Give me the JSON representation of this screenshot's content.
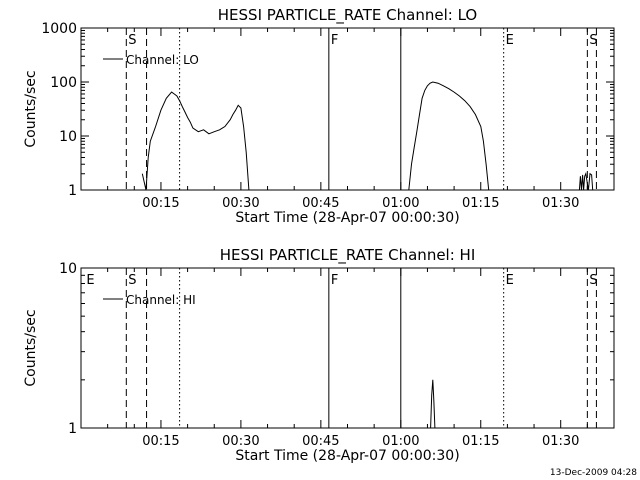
{
  "chart_data": [
    {
      "type": "line",
      "title": "HESSI PARTICLE_RATE Channel: LO",
      "xlabel": "Start Time (28-Apr-07 00:00:30)",
      "ylabel": "Counts/sec",
      "yscale": "log",
      "ylim": [
        1,
        1000
      ],
      "xlim": [
        0,
        100
      ],
      "x_unit": "minutes after 00:00:30",
      "x_ticks": [
        15,
        30,
        45,
        60,
        75,
        90
      ],
      "x_tick_labels": [
        "00:15",
        "00:30",
        "00:45",
        "01:00",
        "01:15",
        "01:30"
      ],
      "y_ticks": [
        1,
        10,
        100,
        1000
      ],
      "y_tick_labels": [
        "1",
        "10",
        "100",
        "1000"
      ],
      "legend": {
        "entries": [
          "Channel: LO"
        ],
        "placement": "top-left"
      },
      "markers": [
        {
          "x": 8.5,
          "style": "dashed",
          "label": "S"
        },
        {
          "x": 12.3,
          "style": "dashed",
          "label": ""
        },
        {
          "x": 18.5,
          "style": "dotted",
          "label": ""
        },
        {
          "x": 46.5,
          "style": "solid",
          "label": "F"
        },
        {
          "x": 60.0,
          "style": "solid",
          "label": ""
        },
        {
          "x": 79.3,
          "style": "dotted",
          "label": "E"
        },
        {
          "x": 95.0,
          "style": "dashed",
          "label": "S"
        },
        {
          "x": 96.7,
          "style": "dashed",
          "label": ""
        }
      ],
      "series": [
        {
          "name": "Channel: LO",
          "segments": [
            {
              "x": [
                11.5,
                12.2,
                12.4,
                12.6,
                13.0,
                14.0,
                15.0,
                16.0,
                17.0,
                17.5,
                18.0,
                18.5,
                19.0,
                19.5,
                20.0,
                20.5,
                21.0,
                22.0,
                23.0,
                24.0,
                25.0,
                26.0,
                27.0,
                28.0,
                28.5,
                29.0,
                29.5,
                30.0,
                30.5,
                31.0,
                31.5
              ],
              "y": [
                2,
                1,
                2,
                4,
                8,
                15,
                30,
                50,
                65,
                60,
                55,
                45,
                35,
                28,
                22,
                18,
                14,
                12,
                13,
                11,
                12,
                13,
                15,
                20,
                25,
                30,
                37,
                33,
                15,
                5,
                1
              ]
            },
            {
              "x": [
                61.5,
                62.0,
                62.5,
                63.0,
                63.5,
                64.0,
                64.5,
                65.0,
                65.5,
                66.0,
                67.0,
                68.0,
                69.0,
                70.0,
                71.0,
                72.0,
                73.0,
                74.0,
                75.0,
                75.5,
                76.0,
                76.5
              ],
              "y": [
                1,
                3,
                6,
                12,
                25,
                50,
                70,
                85,
                95,
                100,
                95,
                85,
                75,
                65,
                55,
                45,
                35,
                25,
                15,
                8,
                3,
                1
              ]
            },
            {
              "x": [
                93.5,
                93.7,
                93.9,
                94.1,
                94.3,
                94.5,
                94.7,
                95.2,
                95.5,
                95.8,
                96.0
              ],
              "y": [
                1,
                1.8,
                1,
                1.9,
                1,
                1.8,
                2,
                1,
                2,
                1.9,
                1
              ]
            }
          ]
        }
      ]
    },
    {
      "type": "line",
      "title": "HESSI PARTICLE_RATE Channel: HI",
      "xlabel": "Start Time (28-Apr-07 00:00:30)",
      "ylabel": "Counts/sec",
      "yscale": "log",
      "ylim": [
        1,
        10
      ],
      "xlim": [
        0,
        100
      ],
      "x_unit": "minutes after 00:00:30",
      "x_ticks": [
        15,
        30,
        45,
        60,
        75,
        90
      ],
      "x_tick_labels": [
        "00:15",
        "00:30",
        "00:45",
        "01:00",
        "01:15",
        "01:30"
      ],
      "y_ticks": [
        1,
        10
      ],
      "y_tick_labels": [
        "1",
        "10"
      ],
      "legend": {
        "entries": [
          "Channel: HI"
        ],
        "placement": "top-left"
      },
      "markers": [
        {
          "x": 1.0,
          "style": "none",
          "label": "E"
        },
        {
          "x": 8.5,
          "style": "dashed",
          "label": "S"
        },
        {
          "x": 12.3,
          "style": "dashed",
          "label": ""
        },
        {
          "x": 18.5,
          "style": "dotted",
          "label": ""
        },
        {
          "x": 46.5,
          "style": "solid",
          "label": "F"
        },
        {
          "x": 60.0,
          "style": "solid",
          "label": ""
        },
        {
          "x": 79.3,
          "style": "dotted",
          "label": "E"
        },
        {
          "x": 95.0,
          "style": "dashed",
          "label": "S"
        },
        {
          "x": 96.7,
          "style": "dashed",
          "label": ""
        }
      ],
      "series": [
        {
          "name": "Channel: HI",
          "segments": [
            {
              "x": [
                65.6,
                65.8,
                66.0,
                66.2,
                66.4
              ],
              "y": [
                1,
                1.6,
                2,
                1.5,
                1
              ]
            }
          ]
        }
      ]
    }
  ],
  "footer_timestamp": "13-Dec-2009 04:28"
}
